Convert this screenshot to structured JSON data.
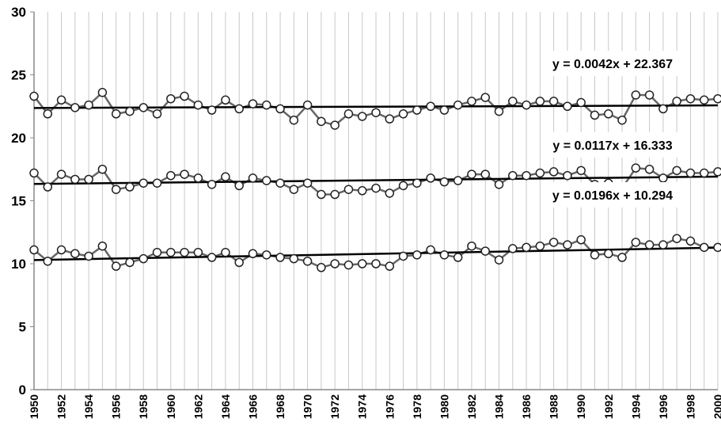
{
  "chart_data": {
    "type": "line",
    "title": "",
    "xlabel": "",
    "ylabel": "",
    "xlim": [
      1950,
      2000
    ],
    "ylim": [
      0,
      30
    ],
    "y_ticks": [
      0,
      5,
      10,
      15,
      20,
      25,
      30
    ],
    "x_tick_step": 2,
    "grid": {
      "vertical": true,
      "horizontal": false,
      "vertical_step": 1
    },
    "x": [
      1950,
      1951,
      1952,
      1953,
      1954,
      1955,
      1956,
      1957,
      1958,
      1959,
      1960,
      1961,
      1962,
      1963,
      1964,
      1965,
      1966,
      1967,
      1968,
      1969,
      1970,
      1971,
      1972,
      1973,
      1974,
      1975,
      1976,
      1977,
      1978,
      1979,
      1980,
      1981,
      1982,
      1983,
      1984,
      1985,
      1986,
      1987,
      1988,
      1989,
      1990,
      1991,
      1992,
      1993,
      1994,
      1995,
      1996,
      1997,
      1998,
      1999,
      2000
    ],
    "series": [
      {
        "values": [
          23.3,
          21.9,
          23.0,
          22.4,
          22.6,
          23.6,
          21.9,
          22.1,
          22.4,
          21.9,
          23.1,
          23.3,
          22.6,
          22.2,
          23.0,
          22.3,
          22.7,
          22.6,
          22.3,
          21.4,
          22.6,
          21.3,
          21.0,
          21.9,
          21.7,
          22.0,
          21.5,
          21.9,
          22.2,
          22.5,
          22.2,
          22.6,
          22.9,
          23.2,
          22.1,
          22.9,
          22.6,
          22.9,
          22.9,
          22.5,
          22.8,
          21.8,
          21.9,
          21.4,
          23.4,
          23.4,
          22.3,
          22.9,
          23.1,
          23.0,
          23.1
        ],
        "trend": {
          "slope": 0.0042,
          "intercept": 22.367,
          "equation": "y = 0.0042x + 22.367"
        }
      },
      {
        "values": [
          17.2,
          16.1,
          17.1,
          16.7,
          16.7,
          17.5,
          15.9,
          16.1,
          16.4,
          16.4,
          17.0,
          17.1,
          16.8,
          16.3,
          16.9,
          16.2,
          16.8,
          16.6,
          16.4,
          15.9,
          16.4,
          15.5,
          15.5,
          15.9,
          15.8,
          16.0,
          15.6,
          16.2,
          16.4,
          16.8,
          16.5,
          16.6,
          17.1,
          17.1,
          16.3,
          17.0,
          17.0,
          17.2,
          17.3,
          17.0,
          17.4,
          16.3,
          16.4,
          16.0,
          17.6,
          17.5,
          16.8,
          17.4,
          17.2,
          17.2,
          17.3
        ],
        "trend": {
          "slope": 0.0117,
          "intercept": 16.333,
          "equation": "y = 0.0117x + 16.333"
        }
      },
      {
        "values": [
          11.1,
          10.2,
          11.1,
          10.8,
          10.6,
          11.4,
          9.8,
          10.1,
          10.4,
          10.9,
          10.9,
          10.9,
          10.9,
          10.5,
          10.9,
          10.1,
          10.8,
          10.7,
          10.5,
          10.4,
          10.2,
          9.7,
          10.0,
          9.9,
          10.0,
          10.0,
          9.8,
          10.6,
          10.7,
          11.1,
          10.7,
          10.5,
          11.4,
          11.0,
          10.3,
          11.2,
          11.3,
          11.4,
          11.7,
          11.5,
          11.9,
          10.7,
          10.8,
          10.5,
          11.7,
          11.5,
          11.5,
          12.0,
          11.8,
          11.3,
          11.3
        ],
        "trend": {
          "slope": 0.0196,
          "intercept": 10.294,
          "equation": "y = 0.0196x + 10.294"
        }
      }
    ],
    "colors": {
      "series_line": "#666666",
      "marker_fill": "#ffffff",
      "marker_stroke": "#222222",
      "trend_line": "#000000",
      "grid": "#c8c8c8",
      "axis": "#888888"
    }
  }
}
